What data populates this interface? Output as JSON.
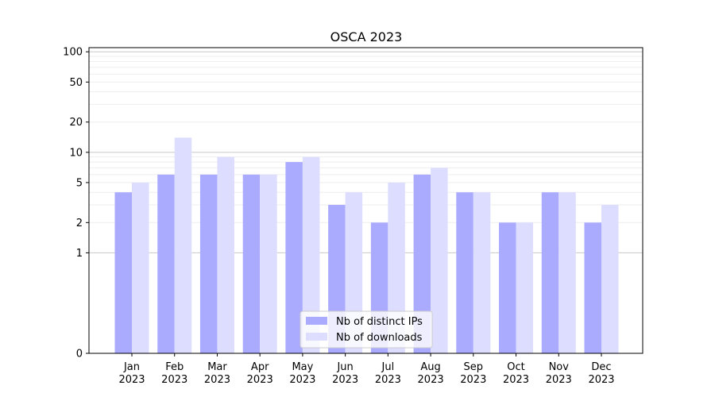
{
  "chart_data": {
    "type": "bar",
    "title": "OSCA 2023",
    "xlabel": "",
    "ylabel": "",
    "y_scale": "symlog",
    "ylim": [
      0,
      110
    ],
    "y_ticks": [
      0,
      1,
      2,
      5,
      10,
      20,
      50,
      100
    ],
    "y_tick_labels": [
      "0",
      "1",
      "2",
      "5",
      "10",
      "20",
      "50",
      "100"
    ],
    "grid": "y",
    "legend_position": "bottom-center",
    "categories": [
      {
        "month": "Jan",
        "year": "2023"
      },
      {
        "month": "Feb",
        "year": "2023"
      },
      {
        "month": "Mar",
        "year": "2023"
      },
      {
        "month": "Apr",
        "year": "2023"
      },
      {
        "month": "May",
        "year": "2023"
      },
      {
        "month": "Jun",
        "year": "2023"
      },
      {
        "month": "Jul",
        "year": "2023"
      },
      {
        "month": "Aug",
        "year": "2023"
      },
      {
        "month": "Sep",
        "year": "2023"
      },
      {
        "month": "Oct",
        "year": "2023"
      },
      {
        "month": "Nov",
        "year": "2023"
      },
      {
        "month": "Dec",
        "year": "2023"
      }
    ],
    "series": [
      {
        "name": "Nb of distinct IPs",
        "color": "#aaaaff",
        "values": [
          4,
          6,
          6,
          6,
          8,
          3,
          2,
          6,
          4,
          2,
          4,
          2
        ]
      },
      {
        "name": "Nb of downloads",
        "color": "#ddddff",
        "values": [
          5,
          14,
          9,
          6,
          9,
          4,
          5,
          7,
          4,
          2,
          4,
          3
        ]
      }
    ]
  }
}
